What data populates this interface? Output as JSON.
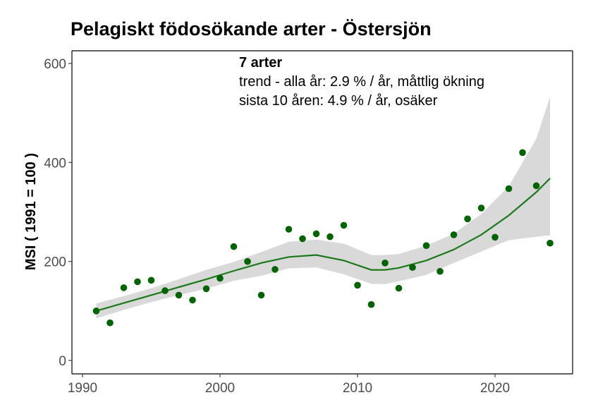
{
  "chart_data": {
    "type": "scatter",
    "title": "Pelagiskt födosökande arter - Östersjön",
    "ylabel": "MSI ( 1991 = 100 )",
    "xlabel": "",
    "xlim": [
      1990,
      2025
    ],
    "ylim": [
      0,
      600
    ],
    "x_ticks": [
      "1990",
      "2000",
      "2010",
      "2020"
    ],
    "y_ticks": [
      "0",
      "200",
      "400",
      "600"
    ],
    "grid": false,
    "annotations": {
      "line1": "7 arter",
      "line2": "trend - alla år: 2.9 % / år, måttlig ökning",
      "line3": "sista 10 åren: 4.9 % / år, osäker"
    },
    "colors": {
      "points": "#006400",
      "trend": "#1a7a1a",
      "band": "#d9d9d9",
      "axis": "#000000"
    },
    "points": {
      "x": [
        1991,
        1992,
        1993,
        1994,
        1995,
        1996,
        1997,
        1998,
        1999,
        2000,
        2001,
        2002,
        2003,
        2004,
        2005,
        2006,
        2007,
        2008,
        2009,
        2010,
        2011,
        2012,
        2013,
        2014,
        2015,
        2016,
        2017,
        2018,
        2019,
        2020,
        2021,
        2022,
        2023,
        2024
      ],
      "y": [
        100,
        76,
        147,
        159,
        162,
        141,
        132,
        122,
        145,
        166,
        230,
        200,
        132,
        184,
        265,
        246,
        256,
        250,
        273,
        152,
        113,
        197,
        146,
        188,
        232,
        180,
        254,
        286,
        308,
        249,
        347,
        420,
        353,
        237
      ]
    },
    "trend": {
      "x": [
        1991,
        1993,
        1995,
        1997,
        1999,
        2001,
        2003,
        2005,
        2007,
        2009,
        2011,
        2012,
        2013,
        2015,
        2017,
        2019,
        2021,
        2023,
        2024
      ],
      "y": [
        100,
        116,
        132,
        148,
        164,
        181,
        197,
        209,
        213,
        202,
        183,
        183,
        187,
        202,
        224,
        254,
        293,
        340,
        368
      ],
      "lower": [
        85,
        102,
        118,
        132,
        145,
        161,
        171,
        186,
        188,
        174,
        155,
        154,
        160,
        173,
        197,
        220,
        243,
        250,
        253
      ],
      "upper": [
        115,
        130,
        146,
        164,
        183,
        199,
        219,
        240,
        244,
        236,
        213,
        213,
        215,
        232,
        256,
        296,
        352,
        448,
        532
      ]
    }
  }
}
